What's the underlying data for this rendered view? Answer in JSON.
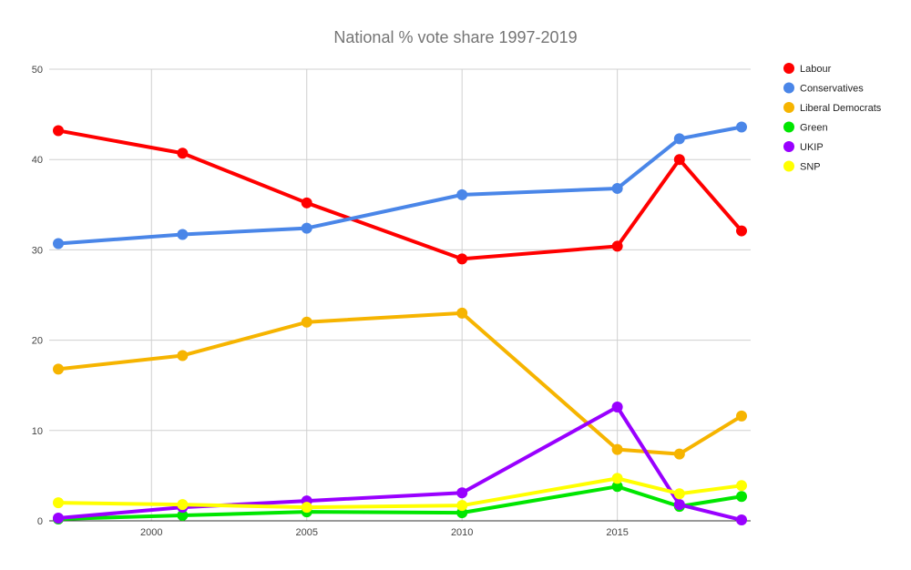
{
  "chart_data": {
    "type": "line",
    "title": "National % vote share 1997-2019",
    "xlabel": "",
    "ylabel": "",
    "x": [
      1997,
      2001,
      2005,
      2010,
      2015,
      2017,
      2019
    ],
    "xlim": [
      1997,
      2019
    ],
    "ylim": [
      0,
      50
    ],
    "xticks": [
      2000,
      2005,
      2010,
      2015
    ],
    "yticks": [
      0,
      10,
      20,
      30,
      40,
      50
    ],
    "grid": true,
    "legend_position": "right",
    "series": [
      {
        "name": "Labour",
        "color": "#ff0000",
        "values": [
          43.2,
          40.7,
          35.2,
          29.0,
          30.4,
          40.0,
          32.1
        ]
      },
      {
        "name": "Conservatives",
        "color": "#4a86e8",
        "values": [
          30.7,
          31.7,
          32.4,
          36.1,
          36.8,
          42.3,
          43.6
        ]
      },
      {
        "name": "Liberal Democrats",
        "color": "#f6b400",
        "values": [
          16.8,
          18.3,
          22.0,
          23.0,
          7.9,
          7.4,
          11.6
        ]
      },
      {
        "name": "Green",
        "color": "#00e600",
        "values": [
          0.2,
          0.6,
          1.0,
          0.9,
          3.8,
          1.6,
          2.7
        ]
      },
      {
        "name": "UKIP",
        "color": "#9900ff",
        "values": [
          0.3,
          1.5,
          2.2,
          3.1,
          12.6,
          1.8,
          0.1
        ]
      },
      {
        "name": "SNP",
        "color": "#ffff00",
        "values": [
          2.0,
          1.8,
          1.5,
          1.7,
          4.7,
          3.0,
          3.9
        ]
      }
    ]
  }
}
